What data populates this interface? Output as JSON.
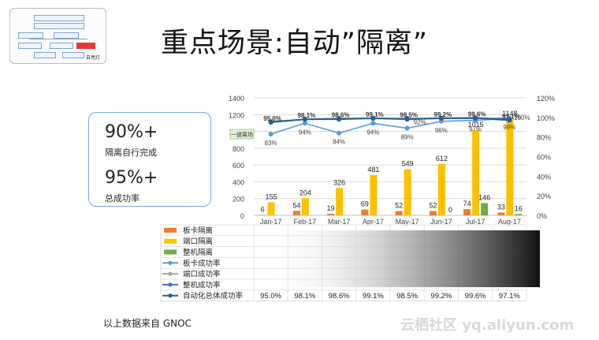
{
  "title": "重点场景:自动”隔离”",
  "thumbnail": {
    "caption": "自亮灯"
  },
  "kpi": [
    {
      "value": "90%+",
      "label": "隔离自行完成"
    },
    {
      "value": "95%+",
      "label": "总成功率"
    }
  ],
  "footnote": "以上数据来自 GNOC",
  "watermark": "云栖社区 yq.aliyun.com",
  "chart_data": {
    "type": "bar",
    "categories": [
      "Jan-17",
      "Feb-17",
      "Mar-17",
      "Apr-17",
      "May-17",
      "Jun-17",
      "Jul-17",
      "Aug-17"
    ],
    "ylim": [
      0,
      1400
    ],
    "yticks": [
      0,
      200,
      400,
      600,
      800,
      1000,
      1200,
      1400
    ],
    "y2lim": [
      0,
      120
    ],
    "y2ticks": [
      "0%",
      "20%",
      "40%",
      "60%",
      "80%",
      "100%",
      "120%"
    ],
    "legend_badge": "一键离场",
    "series": [
      {
        "name": "板卡隔离",
        "type": "bar",
        "color": "#ed7d31",
        "values": [
          6,
          54,
          19,
          69,
          52,
          52,
          74,
          33
        ]
      },
      {
        "name": "端口隔离",
        "type": "bar",
        "color": "#ffc000",
        "values": [
          155,
          204,
          326,
          481,
          549,
          612,
          1015,
          1148
        ]
      },
      {
        "name": "整机隔离",
        "type": "bar",
        "color": "#70ad47",
        "values": [
          0,
          0,
          0,
          0,
          0,
          0,
          146,
          16
        ]
      },
      {
        "name": "板卡成功率",
        "type": "line",
        "color": "#5b9bd5",
        "values": [
          83,
          94,
          84,
          94,
          89,
          96,
          97,
          99
        ]
      },
      {
        "name": "端口成功率",
        "type": "line",
        "color": "#a5a5a5",
        "values": [
          96,
          98,
          99,
          99,
          99,
          99,
          99,
          98
        ]
      },
      {
        "name": "整机成功率",
        "type": "line",
        "color": "#4472c4",
        "values": [
          95,
          98,
          98,
          99,
          98,
          99,
          99,
          99
        ]
      },
      {
        "name": "自动化总体成功率",
        "type": "line",
        "color": "#255e91",
        "values": [
          95.0,
          98.1,
          98.6,
          99.1,
          98.5,
          99.2,
          99.6,
          97.1
        ]
      }
    ],
    "bar_labels": {
      "板卡隔离": [
        "6",
        "54",
        "19",
        "69",
        "52",
        "52",
        "74",
        "33"
      ],
      "端口隔离": [
        "155",
        "204",
        "326",
        "481",
        "549",
        "612",
        "1015",
        "1148"
      ],
      "整机隔离": [
        "",
        "",
        "",
        "",
        "",
        "0",
        "146",
        "16"
      ]
    },
    "line_labels": {
      "板卡成功率": [
        "83%",
        "94%",
        "84%",
        "94%",
        "89%",
        "96%",
        "97%",
        "99%"
      ],
      "自动化总体成功率": [
        "95.0%",
        "98.1%",
        "98.6%",
        "99.1%",
        "98.5%",
        "99.2%",
        "99.6%",
        "97.1%"
      ],
      "extra": [
        "",
        "",
        "",
        "",
        "92%",
        "",
        "",
        "100%"
      ]
    },
    "table_total_row": [
      "95.0%",
      "98.1%",
      "98.6%",
      "99.1%",
      "98.5%",
      "99.2%",
      "99.6%",
      "97.1%"
    ]
  }
}
